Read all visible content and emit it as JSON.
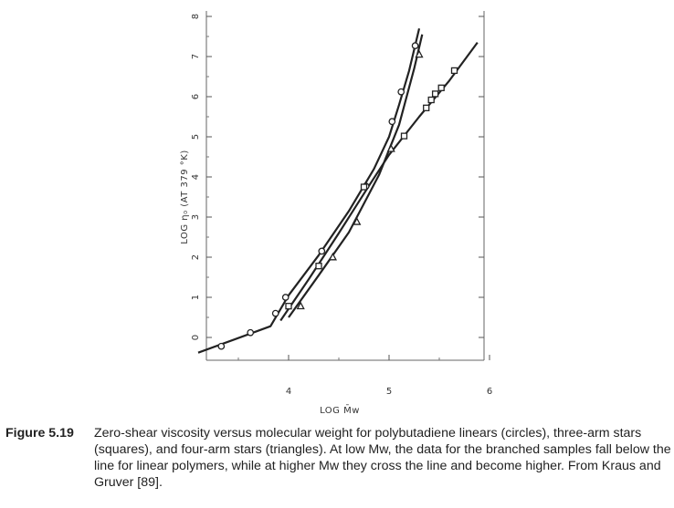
{
  "figure": {
    "label": "Figure 5.19",
    "caption": "Zero-shear viscosity versus molecular weight for polybutadiene linears (circles), three-arm stars (squares), and four-arm stars (triangles). At low Mw, the data for the branched samples fall below the line for linear polymers, while at higher Mw they cross the line and become higher. From Kraus and Gruver [89]."
  },
  "chart_data": {
    "type": "scatter",
    "xlabel": "LOG M̄w",
    "ylabel": "LOG η₀ (AT 379 °K)",
    "xlim": [
      3.1,
      6.0
    ],
    "ylim": [
      -0.4,
      8.0
    ],
    "x_ticks": [
      "4",
      "5",
      "6"
    ],
    "y_ticks": [
      "0",
      "1",
      "2",
      "3",
      "4",
      "5",
      "6",
      "7",
      "8"
    ],
    "grid": false,
    "series": [
      {
        "marker": "circle",
        "points": [
          [
            3.33,
            -0.22
          ],
          [
            3.62,
            0.12
          ],
          [
            3.87,
            0.6
          ],
          [
            3.97,
            1.0
          ],
          [
            4.33,
            2.15
          ],
          [
            4.77,
            3.77
          ],
          [
            5.03,
            5.38
          ],
          [
            5.12,
            6.12
          ],
          [
            5.26,
            7.27
          ]
        ],
        "line": [
          [
            3.1,
            -0.38
          ],
          [
            3.82,
            0.28
          ],
          [
            4.0,
            1.05
          ],
          [
            4.3,
            2.05
          ],
          [
            4.6,
            3.15
          ],
          [
            4.85,
            4.2
          ],
          [
            5.0,
            5.0
          ],
          [
            5.1,
            5.8
          ],
          [
            5.2,
            6.65
          ],
          [
            5.3,
            7.7
          ]
        ]
      },
      {
        "marker": "square",
        "points": [
          [
            4.0,
            0.78
          ],
          [
            4.3,
            1.78
          ],
          [
            4.75,
            3.75
          ],
          [
            5.15,
            5.02
          ],
          [
            5.37,
            5.72
          ],
          [
            5.42,
            5.92
          ],
          [
            5.46,
            6.07
          ],
          [
            5.52,
            6.22
          ],
          [
            5.65,
            6.65
          ]
        ],
        "line": [
          [
            3.92,
            0.42
          ],
          [
            4.2,
            1.45
          ],
          [
            4.5,
            2.6
          ],
          [
            4.8,
            3.78
          ],
          [
            5.0,
            4.55
          ],
          [
            5.3,
            5.5
          ],
          [
            5.6,
            6.4
          ],
          [
            5.88,
            7.35
          ]
        ]
      },
      {
        "marker": "triangle",
        "points": [
          [
            4.12,
            0.78
          ],
          [
            4.44,
            2.0
          ],
          [
            4.68,
            2.88
          ],
          [
            5.02,
            4.7
          ],
          [
            5.3,
            7.05
          ]
        ],
        "line": [
          [
            4.0,
            0.5
          ],
          [
            4.3,
            1.55
          ],
          [
            4.6,
            2.62
          ],
          [
            4.9,
            4.05
          ],
          [
            5.1,
            5.3
          ],
          [
            5.25,
            6.7
          ],
          [
            5.33,
            7.55
          ]
        ]
      }
    ]
  }
}
